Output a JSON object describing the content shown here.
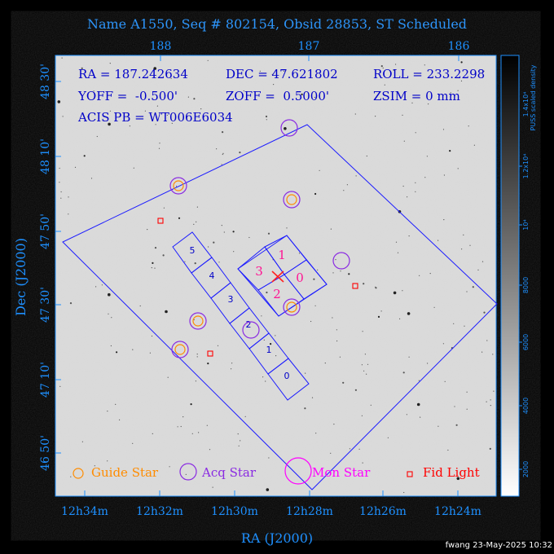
{
  "title": "Name A1550, Seq # 802154, Obsid 28853, ST Scheduled",
  "axes": {
    "xlabel": "RA (J2000)",
    "ylabel": "Dec (J2000)",
    "top_ticks": [
      "188",
      "187",
      "186"
    ],
    "bottom_ticks": [
      "12h34m",
      "12h32m",
      "12h30m",
      "12h28m",
      "12h26m",
      "12h24m"
    ],
    "left_ticks": [
      "48 30'",
      "48 10'",
      "47 50'",
      "47 30'",
      "47 10'",
      "46 50'"
    ]
  },
  "info": {
    "ra": "RA = 187.242634",
    "dec": "DEC = 47.621802",
    "roll": "ROLL = 233.2298",
    "yoff": "YOFF =  -0.500'",
    "zoff": "ZOFF =  0.5000'",
    "zsim": "ZSIM = 0 mm",
    "acis": "ACIS PB = WT006E6034"
  },
  "chips": {
    "i_array": [
      "0",
      "1",
      "2",
      "3"
    ],
    "s_array": [
      "0",
      "1",
      "2",
      "3",
      "4",
      "5"
    ]
  },
  "legend": {
    "guide": "Guide Star",
    "acq": "Acq Star",
    "mon": "Mon Star",
    "fid": "Fid Light"
  },
  "colorbar": {
    "title_line1": "PUSS scaled density",
    "title_line2": "1.4x10⁴",
    "ticks": [
      "2000",
      "4000",
      "6000",
      "8000",
      "10⁴",
      "1.2x10⁴"
    ]
  },
  "footer": "fwang 23-May-2025 10:32",
  "colors": {
    "fov": "#1c1cff",
    "guide": "#ff8c00",
    "acq": "#8a2be2",
    "mon": "#ff00ff",
    "fid": "#ff0000",
    "ichip_label": "#ff1493",
    "axis_text": "#1e90ff",
    "info_text": "#0000c8"
  }
}
